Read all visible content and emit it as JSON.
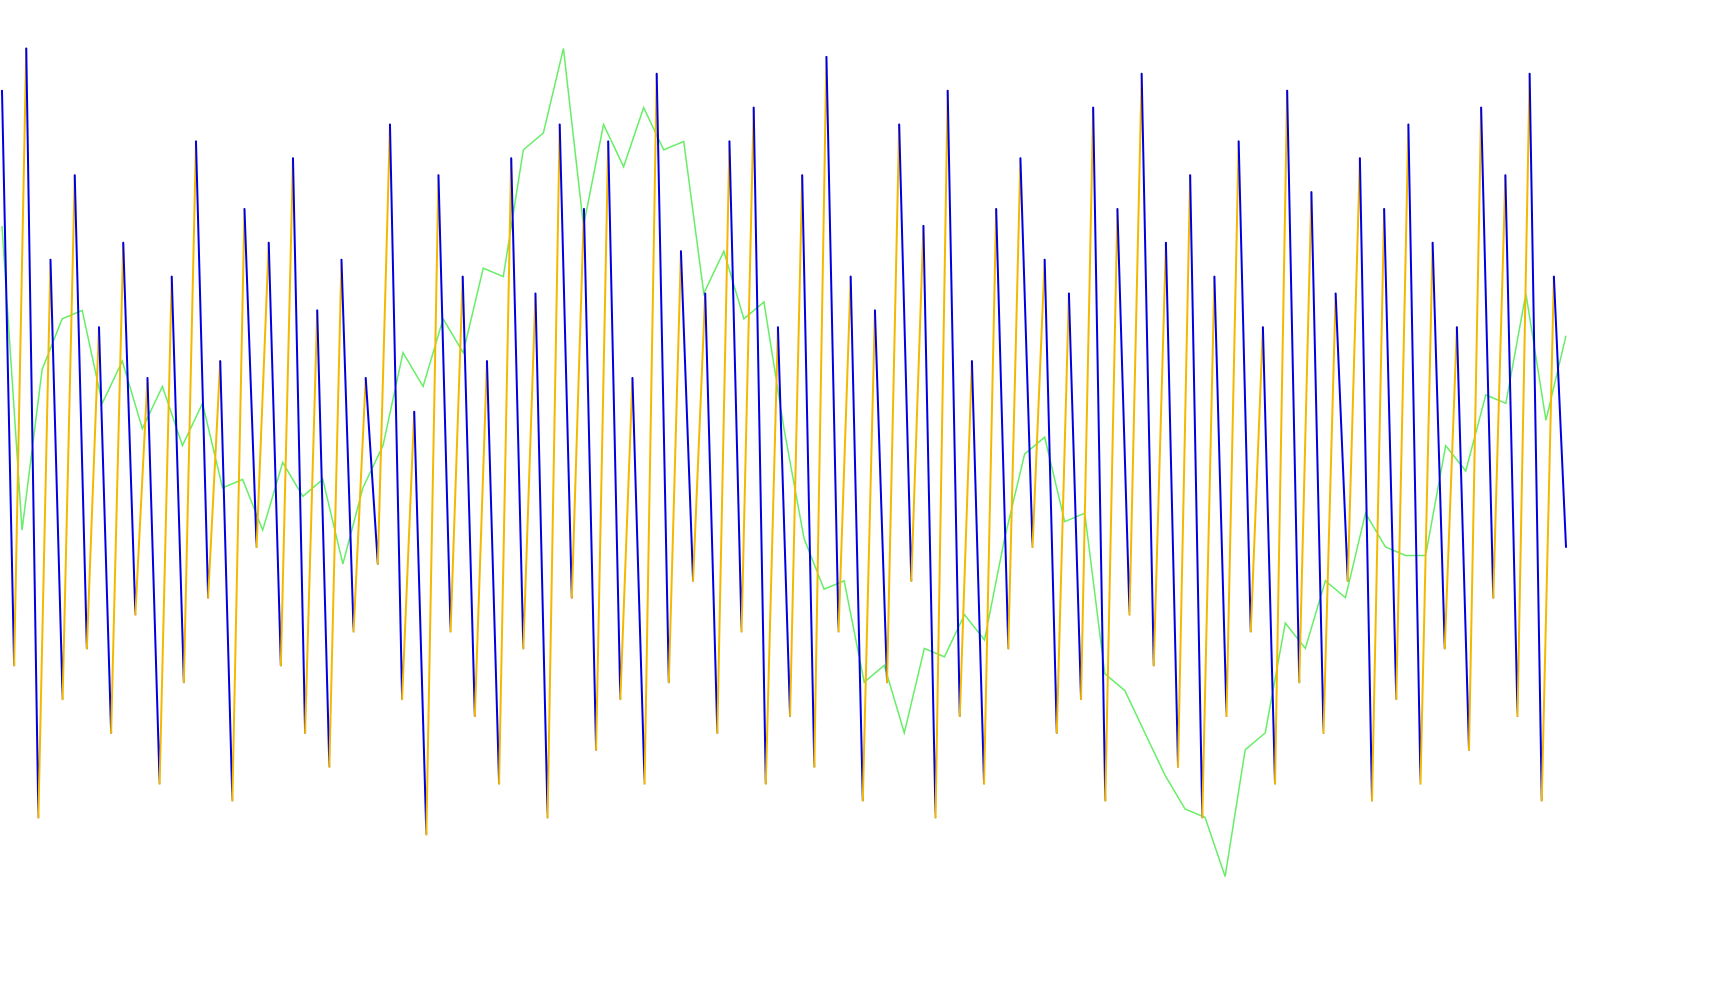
{
  "chart_data": {
    "type": "line",
    "ylim": [
      0,
      100
    ],
    "series": [
      {
        "color": "#0000e0",
        "up_color": "#f2b900",
        "values": [
          94,
          26,
          99,
          8,
          74,
          22,
          84,
          28,
          66,
          18,
          76,
          32,
          60,
          12,
          72,
          24,
          88,
          34,
          62,
          10,
          80,
          40,
          76,
          26,
          86,
          18,
          68,
          14,
          74,
          30,
          60,
          38,
          90,
          22,
          56,
          6,
          84,
          30,
          72,
          20,
          62,
          12,
          86,
          28,
          70,
          8,
          90,
          34,
          80,
          16,
          88,
          22,
          60,
          12,
          96,
          24,
          75,
          36,
          70,
          18,
          88,
          30,
          92,
          12,
          66,
          20,
          84,
          14,
          98,
          30,
          72,
          10,
          68,
          24,
          90,
          36,
          78,
          8,
          94,
          20,
          62,
          12,
          80,
          28,
          86,
          40,
          74,
          18,
          70,
          22,
          92,
          10,
          80,
          32,
          96,
          26,
          76,
          14,
          84,
          8,
          72,
          20,
          88,
          30,
          66,
          12,
          94,
          24,
          82,
          18,
          70,
          36,
          86,
          10,
          80,
          22,
          90,
          12,
          76,
          28,
          66,
          16,
          92,
          34,
          84,
          20,
          96,
          10,
          72,
          40
        ]
      },
      {
        "color": "#66ee66",
        "values": [
          78,
          42,
          61,
          67,
          68,
          57,
          62,
          54,
          59,
          52,
          57,
          47,
          48,
          42,
          50,
          46,
          48,
          38,
          47,
          52,
          63,
          59,
          67,
          63,
          73,
          72,
          87,
          89,
          99,
          78,
          90,
          85,
          92,
          87,
          88,
          70,
          75,
          67,
          69,
          54,
          41,
          35,
          36,
          24,
          26,
          18,
          28,
          27,
          32,
          29,
          41,
          51,
          53,
          43,
          44,
          25,
          23,
          18,
          13,
          9,
          8,
          1,
          16,
          18,
          31,
          28,
          36,
          34,
          44,
          40,
          39,
          39,
          52,
          49,
          58,
          57,
          70,
          55,
          65
        ]
      }
    ]
  }
}
